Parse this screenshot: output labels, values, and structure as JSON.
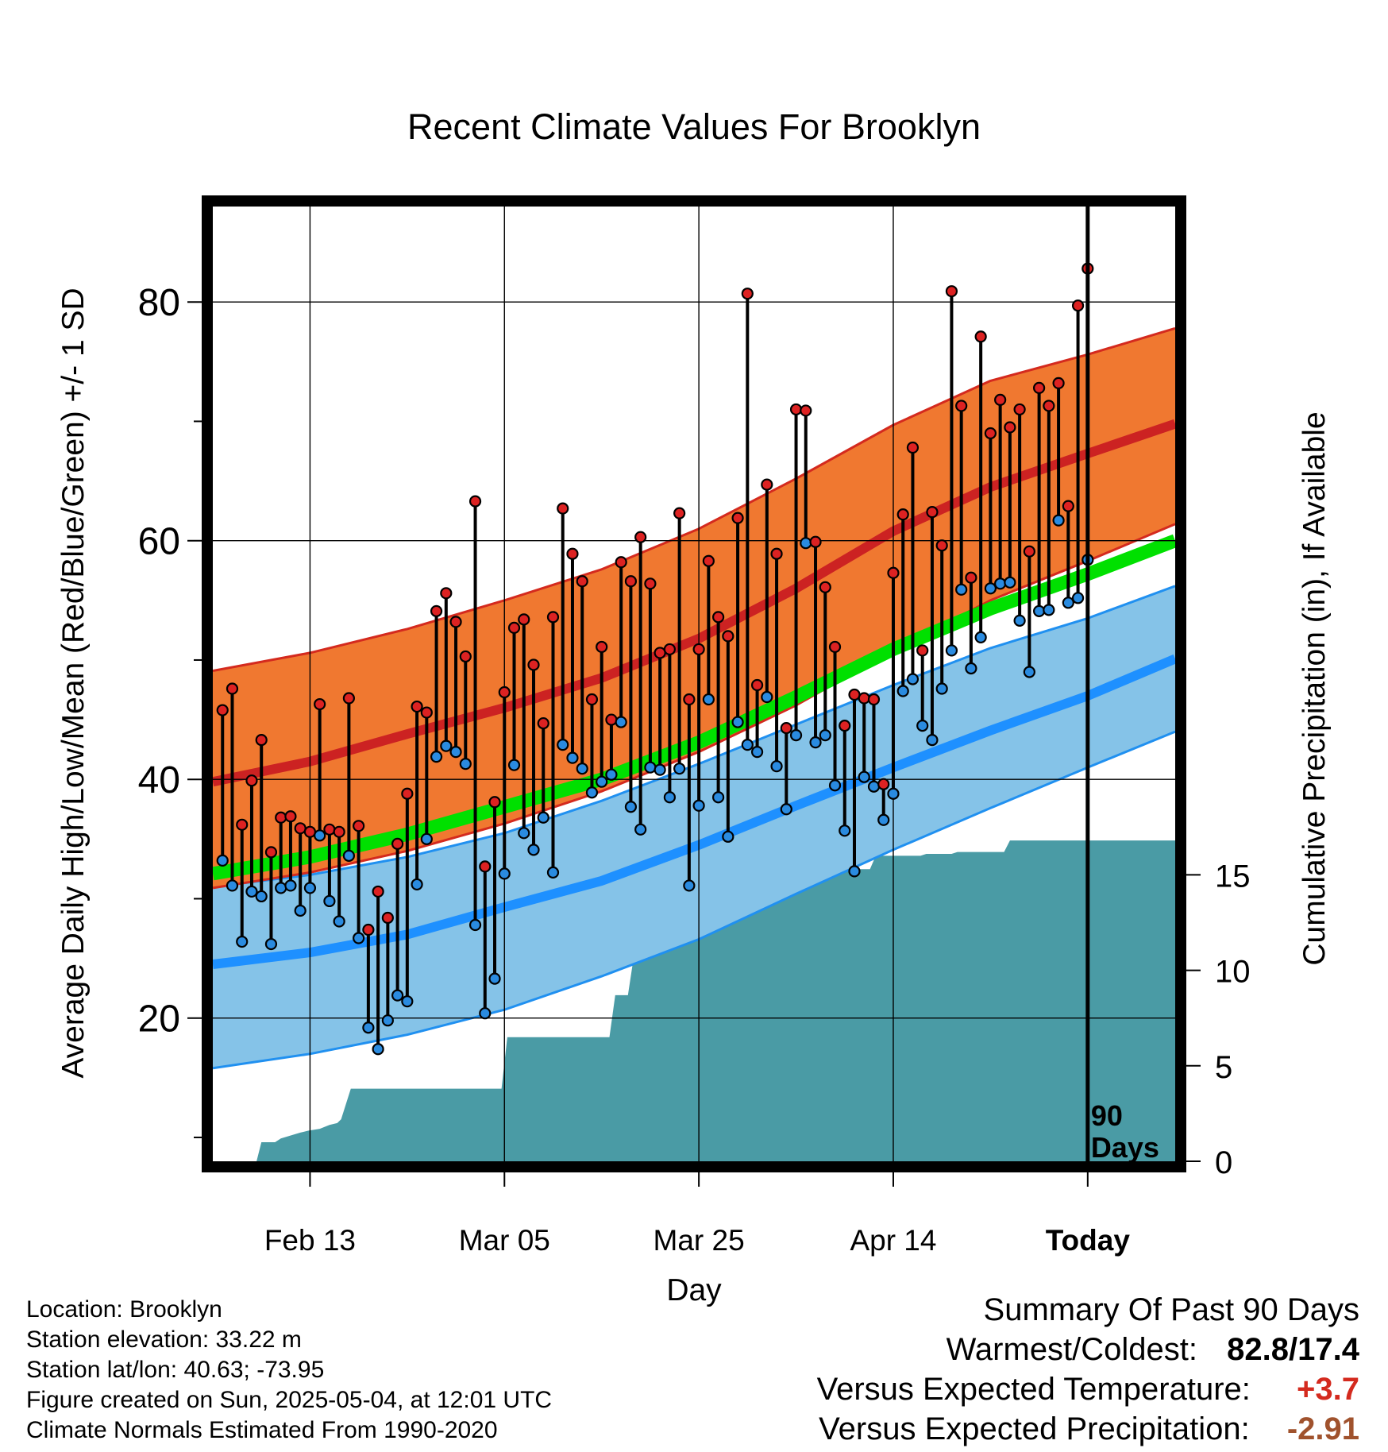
{
  "chart_data": {
    "type": "line",
    "title": "Recent Climate Values For Brooklyn",
    "xlabel": "Day",
    "ylabel": "Average Daily High/Low/Mean (Red/Blue/Green) +/- 1 SD",
    "y2label": "Cumulative Precipitation (in), If Available",
    "xlim": [
      0,
      99
    ],
    "ylim": [
      8,
      88
    ],
    "y2lim": [
      0,
      50
    ],
    "x_ticks": [
      {
        "x": 10,
        "label": "Feb 13"
      },
      {
        "x": 30,
        "label": "Mar 05"
      },
      {
        "x": 50,
        "label": "Mar 25"
      },
      {
        "x": 70,
        "label": "Apr 14"
      },
      {
        "x": 90,
        "label": "Today"
      }
    ],
    "y_ticks": [
      {
        "y": 20,
        "label": "20"
      },
      {
        "y": 40,
        "label": "40"
      },
      {
        "y": 60,
        "label": "60"
      },
      {
        "y": 80,
        "label": "80"
      }
    ],
    "y_minor_ticks": [
      10,
      30,
      50,
      70
    ],
    "y2_ticks": [
      {
        "y": 0,
        "label": "0"
      },
      {
        "y": 5,
        "label": "5"
      },
      {
        "y": 10,
        "label": "10"
      },
      {
        "y": 15,
        "label": "15"
      }
    ],
    "today_marker": {
      "x": 90,
      "label_line1": "90",
      "label_line2": "Days"
    },
    "grid": true,
    "colors": {
      "high_band": "#f07830",
      "high_band_edge": "#d42a1e",
      "high_normal": "#cc2222",
      "low_band": "#85c3e8",
      "low_band_edge": "#2090f0",
      "low_normal": "#1e90ff",
      "mean_normal": "#00e000",
      "precip": "#4a9ba5",
      "high_marker": "#dd2222",
      "low_marker": "#2a8be0"
    },
    "normals": {
      "x": [
        0,
        10,
        20,
        30,
        40,
        50,
        60,
        70,
        80,
        90,
        99
      ],
      "high_mean": [
        39.8,
        41.5,
        43.8,
        46.0,
        48.5,
        51.8,
        56.0,
        60.8,
        64.5,
        67.3,
        69.8
      ],
      "high_upper": [
        49.1,
        50.6,
        52.6,
        55.0,
        57.6,
        61.0,
        65.2,
        69.7,
        73.4,
        75.6,
        77.8
      ],
      "high_lower": [
        30.9,
        32.2,
        34.0,
        36.3,
        39.0,
        42.3,
        46.2,
        50.8,
        55.0,
        58.3,
        61.4
      ],
      "low_mean": [
        24.5,
        25.5,
        27.0,
        29.3,
        31.5,
        34.5,
        37.8,
        41.0,
        44.1,
        47.0,
        50.1
      ],
      "low_upper": [
        31.0,
        32.0,
        33.5,
        35.5,
        38.2,
        41.3,
        44.6,
        47.9,
        51.0,
        53.5,
        56.2
      ],
      "low_lower": [
        15.8,
        17.0,
        18.6,
        20.7,
        23.5,
        26.6,
        30.4,
        34.1,
        37.6,
        41.0,
        44.0
      ],
      "mean": [
        32.1,
        33.5,
        35.4,
        37.7,
        40.0,
        43.1,
        46.9,
        50.9,
        54.3,
        57.2,
        60.0
      ]
    },
    "series": [
      {
        "name": "High",
        "values": [
          45.8,
          47.6,
          36.2,
          39.9,
          43.3,
          33.9,
          36.8,
          36.9,
          35.9,
          35.6,
          46.3,
          35.8,
          35.6,
          46.8,
          36.1,
          27.4,
          30.6,
          28.4,
          34.6,
          38.8,
          46.1,
          45.6,
          54.1,
          55.6,
          53.2,
          50.3,
          63.3,
          32.7,
          38.1,
          47.3,
          52.7,
          53.4,
          49.6,
          44.7,
          53.6,
          62.7,
          58.9,
          56.6,
          46.7,
          51.1,
          45.0,
          58.2,
          56.6,
          60.3,
          56.4,
          50.6,
          50.9,
          62.3,
          46.7,
          50.9,
          58.3,
          53.6,
          52.0,
          61.9,
          80.7,
          47.9,
          64.7,
          58.9,
          44.3,
          71.0,
          70.9,
          59.9,
          56.1,
          51.1,
          44.5,
          47.1,
          46.8,
          46.7,
          39.6,
          57.3,
          62.2,
          67.8,
          50.8,
          62.4,
          59.6,
          80.9,
          71.3,
          56.9,
          77.1,
          69.0,
          71.8,
          69.5,
          71.0,
          59.1,
          72.8,
          71.3,
          73.2,
          62.9,
          79.7,
          82.8
        ]
      },
      {
        "name": "Low",
        "values": [
          33.2,
          31.1,
          26.4,
          30.6,
          30.2,
          26.2,
          30.9,
          31.1,
          29.0,
          30.9,
          35.3,
          29.8,
          28.1,
          33.6,
          26.7,
          19.2,
          17.4,
          19.8,
          21.9,
          21.4,
          31.2,
          35.0,
          41.9,
          42.8,
          42.3,
          41.3,
          27.8,
          20.4,
          23.3,
          32.1,
          41.2,
          35.5,
          34.1,
          36.8,
          32.2,
          42.9,
          41.8,
          40.9,
          38.9,
          39.8,
          40.4,
          44.8,
          37.7,
          35.8,
          41.0,
          40.8,
          38.5,
          40.9,
          31.1,
          37.8,
          46.7,
          38.5,
          35.2,
          44.8,
          42.9,
          42.3,
          46.9,
          41.1,
          37.5,
          43.7,
          59.8,
          43.1,
          43.7,
          39.5,
          35.7,
          32.3,
          40.2,
          39.4,
          36.6,
          38.8,
          47.4,
          48.4,
          44.5,
          43.3,
          47.6,
          50.8,
          55.9,
          49.3,
          51.9,
          56.0,
          56.4,
          56.5,
          53.3,
          49.0,
          54.1,
          54.2,
          61.7,
          54.8,
          55.2,
          58.4
        ]
      }
    ],
    "precip": {
      "x": [
        0,
        4.5,
        5,
        6.4,
        7,
        9,
        9.8,
        11,
        12,
        12.8,
        13.2,
        14.2,
        29.7,
        30.3,
        40.8,
        41.4,
        42.7,
        43.3,
        44.6,
        45.2,
        48.2,
        48.8,
        52.8,
        53.4,
        54.4,
        55.0,
        56.0,
        56.6,
        60.5,
        61.1,
        63.6,
        64.2,
        67.6,
        68.2,
        72.8,
        73.4,
        76.0,
        76.6,
        81.4,
        82.0,
        99
      ],
      "values": [
        0,
        0,
        1.0,
        1.0,
        1.2,
        1.5,
        1.6,
        1.7,
        1.9,
        2.0,
        2.2,
        3.8,
        3.8,
        6.5,
        6.5,
        8.7,
        8.7,
        10.7,
        10.7,
        11.7,
        11.7,
        13.2,
        13.2,
        13.3,
        13.3,
        14.4,
        14.4,
        14.7,
        14.7,
        15.0,
        15.0,
        15.3,
        15.3,
        16.0,
        16.0,
        16.1,
        16.1,
        16.2,
        16.2,
        16.8,
        16.8
      ]
    }
  },
  "info": {
    "location": "Location: Brooklyn",
    "elevation": "Station elevation: 33.22 m",
    "latlon": "Station lat/lon: 40.63; -73.95",
    "created": "Figure created on Sun, 2025-05-04, at 12:01 UTC",
    "normals": "Climate Normals Estimated From 1990-2020"
  },
  "summary": {
    "heading": "Summary Of Past 90 Days",
    "warmest_label": "Warmest/Coldest:",
    "warmest_value": "82.8",
    "slash": "/",
    "coldest_value": "17.4",
    "temp_label": "Versus Expected Temperature:",
    "temp_value": "+3.7",
    "temp_color": "#d42a1e",
    "precip_label": "Versus Expected Precipitation:",
    "precip_value": "-2.91",
    "precip_color": "#a0522d"
  }
}
